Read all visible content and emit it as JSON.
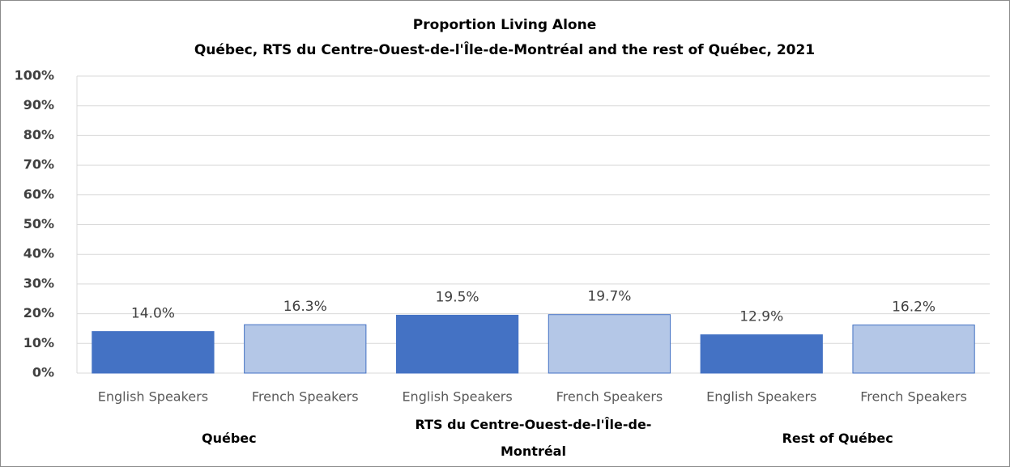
{
  "chart_data": {
    "type": "bar",
    "title": "Proportion Living Alone",
    "subtitle": "Québec, RTS du Centre-Ouest-de-l'Île-de-Montréal and the rest of Québec, 2021",
    "categories": [
      "English Speakers",
      "French Speakers",
      "English Speakers",
      "French Speakers",
      "English Speakers",
      "French Speakers"
    ],
    "groups": [
      "Québec",
      "RTS du Centre-Ouest-de-l'Île-de-Montréal",
      "Rest of Québec"
    ],
    "values": [
      14.0,
      16.3,
      19.5,
      19.7,
      12.9,
      16.2
    ],
    "value_labels": [
      "14.0%",
      "16.3%",
      "19.5%",
      "19.7%",
      "12.9%",
      "16.2%"
    ],
    "colors": [
      "#4472c4",
      "#b4c7e7",
      "#4472c4",
      "#b4c7e7",
      "#4472c4",
      "#b4c7e7"
    ],
    "ylim": [
      0,
      100
    ],
    "yticks": [
      {
        "value": 0,
        "label": "0%"
      },
      {
        "value": 10,
        "label": "10%"
      },
      {
        "value": 20,
        "label": "20%"
      },
      {
        "value": 30,
        "label": "30%"
      },
      {
        "value": 40,
        "label": "40%"
      },
      {
        "value": 50,
        "label": "50%"
      },
      {
        "value": 60,
        "label": "60%"
      },
      {
        "value": 70,
        "label": "70%"
      },
      {
        "value": 80,
        "label": "80%"
      },
      {
        "value": 90,
        "label": "90%"
      },
      {
        "value": 100,
        "label": "100%"
      }
    ],
    "grid": true
  }
}
